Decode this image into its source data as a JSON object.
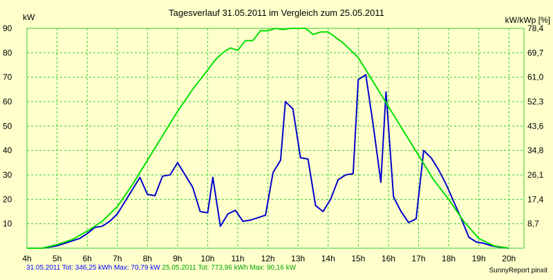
{
  "chart_data": {
    "type": "line",
    "title": "Tagesverlauf 31.05.2011 im Vergleich zum 25.05.2011",
    "ylabel_left": "kW",
    "ylabel_right": "kW/kWp [%]",
    "x_ticks": [
      {
        "v": 4,
        "label": "4h"
      },
      {
        "v": 5,
        "label": "5h"
      },
      {
        "v": 6,
        "label": "6h"
      },
      {
        "v": 7,
        "label": "7h"
      },
      {
        "v": 8,
        "label": "8h"
      },
      {
        "v": 9,
        "label": "9h"
      },
      {
        "v": 10,
        "label": "10h"
      },
      {
        "v": 11,
        "label": "11h"
      },
      {
        "v": 12,
        "label": "12h"
      },
      {
        "v": 13,
        "label": "13h"
      },
      {
        "v": 14,
        "label": "14h"
      },
      {
        "v": 15,
        "label": "15h"
      },
      {
        "v": 16,
        "label": "16h"
      },
      {
        "v": 17,
        "label": "17h"
      },
      {
        "v": 18,
        "label": "18h"
      },
      {
        "v": 19,
        "label": "19h"
      },
      {
        "v": 20,
        "label": "20h"
      }
    ],
    "xlim": [
      4,
      20.5
    ],
    "ylim": [
      0,
      90
    ],
    "y_ticks_left": [
      10,
      20,
      30,
      40,
      50,
      60,
      70,
      80,
      90
    ],
    "y_ticks_right": [
      "8,7",
      "17,4",
      "26,1",
      "34,8",
      "43,6",
      "52,3",
      "61,0",
      "69,7",
      "78,4"
    ],
    "grid": true,
    "series": [
      {
        "name": "31.05.2011",
        "color": "#0000cc",
        "points": [
          [
            4.0,
            0
          ],
          [
            4.5,
            0
          ],
          [
            5.0,
            1
          ],
          [
            5.5,
            3
          ],
          [
            5.75,
            4
          ],
          [
            6.0,
            6
          ],
          [
            6.25,
            8.5
          ],
          [
            6.5,
            9
          ],
          [
            6.75,
            11
          ],
          [
            7.0,
            14
          ],
          [
            7.25,
            19
          ],
          [
            7.5,
            24
          ],
          [
            7.75,
            29
          ],
          [
            8.0,
            22
          ],
          [
            8.25,
            21.5
          ],
          [
            8.5,
            29.5
          ],
          [
            8.75,
            30
          ],
          [
            9.0,
            35
          ],
          [
            9.25,
            30
          ],
          [
            9.5,
            25
          ],
          [
            9.75,
            15
          ],
          [
            10.0,
            14.5
          ],
          [
            10.17,
            29
          ],
          [
            10.42,
            9
          ],
          [
            10.67,
            14
          ],
          [
            10.92,
            15.5
          ],
          [
            11.17,
            11
          ],
          [
            11.42,
            11.5
          ],
          [
            11.67,
            12.5
          ],
          [
            11.92,
            13.5
          ],
          [
            12.17,
            31
          ],
          [
            12.42,
            36
          ],
          [
            12.58,
            60
          ],
          [
            12.83,
            57
          ],
          [
            13.08,
            37
          ],
          [
            13.33,
            36.5
          ],
          [
            13.58,
            17.5
          ],
          [
            13.83,
            15
          ],
          [
            14.08,
            20
          ],
          [
            14.33,
            28
          ],
          [
            14.58,
            30
          ],
          [
            14.83,
            30.5
          ],
          [
            15.0,
            69
          ],
          [
            15.25,
            71
          ],
          [
            15.5,
            50
          ],
          [
            15.75,
            27
          ],
          [
            15.92,
            64
          ],
          [
            16.17,
            21
          ],
          [
            16.42,
            15
          ],
          [
            16.67,
            10.5
          ],
          [
            16.92,
            12
          ],
          [
            17.17,
            40
          ],
          [
            17.42,
            37
          ],
          [
            17.67,
            32
          ],
          [
            17.92,
            26
          ],
          [
            18.17,
            19
          ],
          [
            18.42,
            12
          ],
          [
            18.67,
            4.5
          ],
          [
            18.92,
            2.5
          ],
          [
            19.17,
            2
          ],
          [
            19.42,
            1
          ],
          [
            19.67,
            0.5
          ],
          [
            20.0,
            0
          ]
        ]
      },
      {
        "name": "25.05.2011",
        "color": "#00e000",
        "points": [
          [
            4.0,
            0
          ],
          [
            4.5,
            0
          ],
          [
            5.0,
            1.5
          ],
          [
            5.5,
            3.5
          ],
          [
            6.0,
            7
          ],
          [
            6.5,
            11
          ],
          [
            7.0,
            17
          ],
          [
            7.5,
            26
          ],
          [
            8.0,
            36
          ],
          [
            8.5,
            46
          ],
          [
            9.0,
            56
          ],
          [
            9.5,
            65
          ],
          [
            10.0,
            73
          ],
          [
            10.25,
            77
          ],
          [
            10.5,
            80
          ],
          [
            10.75,
            82
          ],
          [
            11.0,
            81
          ],
          [
            11.25,
            85
          ],
          [
            11.5,
            85
          ],
          [
            11.75,
            89
          ],
          [
            12.0,
            89
          ],
          [
            12.25,
            90
          ],
          [
            12.5,
            89.5
          ],
          [
            12.75,
            90
          ],
          [
            13.0,
            90
          ],
          [
            13.25,
            90
          ],
          [
            13.5,
            87.5
          ],
          [
            13.75,
            88.5
          ],
          [
            14.0,
            88.5
          ],
          [
            14.5,
            84
          ],
          [
            15.0,
            78
          ],
          [
            15.5,
            68
          ],
          [
            16.0,
            58
          ],
          [
            16.5,
            48
          ],
          [
            17.0,
            38
          ],
          [
            17.5,
            28
          ],
          [
            18.0,
            20
          ],
          [
            18.5,
            11
          ],
          [
            19.0,
            4
          ],
          [
            19.5,
            1
          ],
          [
            20.0,
            0
          ]
        ]
      }
    ],
    "footer": {
      "blue": "31.05.2011 Tot: 346,25 kWh Max: 70,79 kW",
      "green": "25.05.2011 Tot: 773,96 kWh Max: 90,16 kW"
    },
    "brand": "SunnyReport pinxit",
    "colors": {
      "background": "#ffffcc",
      "grid": "#33cc33",
      "blue": "#0000cc",
      "green": "#00e000"
    }
  }
}
